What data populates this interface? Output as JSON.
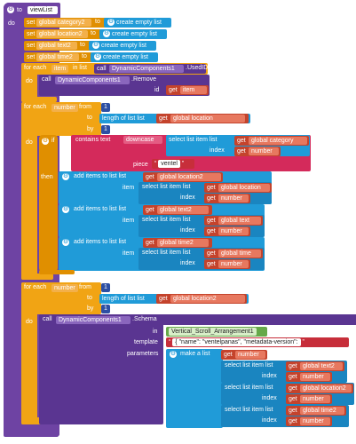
{
  "proc": {
    "to": "to",
    "name": "viewList",
    "do": "do"
  },
  "sets": [
    {
      "set": "set",
      "var": "global category2",
      "to": "to",
      "val": "create empty list"
    },
    {
      "set": "set",
      "var": "global location2",
      "to": "to",
      "val": "create empty list"
    },
    {
      "set": "set",
      "var": "global text2",
      "to": "to",
      "val": "create empty list"
    },
    {
      "set": "set",
      "var": "global time2",
      "to": "to",
      "val": "create empty list"
    }
  ],
  "foreach1": {
    "for_each": "for each",
    "item": "item",
    "in_list": "in list",
    "call": "call",
    "comp": "DynamicComponents1",
    "method": ".UsedIDs",
    "do": "do",
    "call2": "call",
    "comp2": "DynamicComponents1",
    "method2": ".Remove",
    "id": "id",
    "get": "get",
    "getv": "item"
  },
  "forrange1": {
    "for_each": "for each",
    "number": "number",
    "from": "from",
    "from_v": "1",
    "to": "to",
    "length": "length of list  list",
    "get": "get",
    "getv": "global location",
    "by": "by",
    "by_v": "1"
  },
  "if": {
    "do": "do",
    "if": "if",
    "contains": "contains text",
    "downcase": "downcase",
    "select": "select list item  list",
    "get": "get",
    "getv": "global category",
    "index": "index",
    "get2": "get",
    "getv2": "number",
    "piece": "piece",
    "piece_v": "ventel",
    "then": "then"
  },
  "adds": [
    {
      "label": "add items to list  list",
      "get": "get",
      "list": "global location2",
      "item": "item",
      "select": "select list item  list",
      "get2": "get",
      "src": "global location",
      "index": "index",
      "get3": "get",
      "idx": "number"
    },
    {
      "label": "add items to list  list",
      "get": "get",
      "list": "global text2",
      "item": "item",
      "select": "select list item  list",
      "get2": "get",
      "src": "global text",
      "index": "index",
      "get3": "get",
      "idx": "number"
    },
    {
      "label": "add items to list  list",
      "get": "get",
      "list": "global time2",
      "item": "item",
      "select": "select list item  list",
      "get2": "get",
      "src": "global time",
      "index": "index",
      "get3": "get",
      "idx": "number"
    }
  ],
  "forrange2": {
    "for_each": "for each",
    "number": "number",
    "from": "from",
    "from_v": "1",
    "to": "to",
    "length": "length of list  list",
    "get": "get",
    "getv": "global location2",
    "by": "by",
    "by_v": "1"
  },
  "schema": {
    "do": "do",
    "call": "call",
    "comp": "DynamicComponents1",
    "method": ".Schema",
    "in": "in",
    "in_v": "Vertical_Scroll_Arrangement1",
    "template": "template",
    "template_v": "{ \"name\": \"ventelpanas\",  \"metadata-version\":",
    "parameters": "parameters",
    "make": "make a list",
    "get": "get",
    "getv": "number",
    "rows": [
      {
        "select": "select list item  list",
        "get": "get",
        "src": "global text2",
        "index": "index",
        "get2": "get",
        "idx": "number"
      },
      {
        "select": "select list item  list",
        "get": "get",
        "src": "global location2",
        "index": "index",
        "get2": "get",
        "idx": "number"
      },
      {
        "select": "select list item  list",
        "get": "get",
        "src": "global time2",
        "index": "index",
        "get2": "get",
        "idx": "number"
      }
    ]
  }
}
